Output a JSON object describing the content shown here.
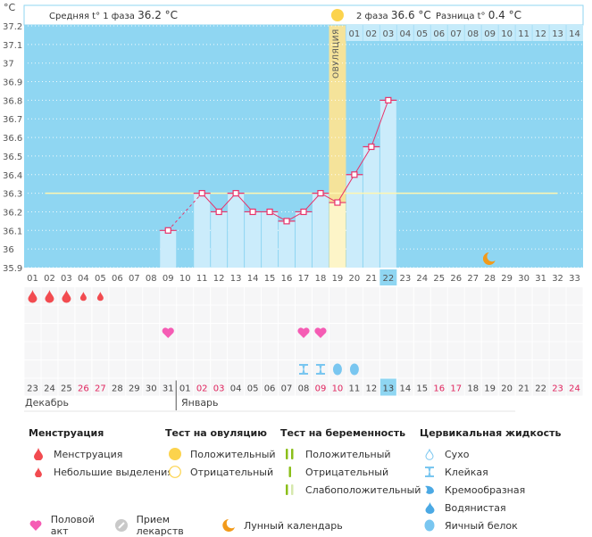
{
  "header": {
    "unit": "°C",
    "phase1_label": "Средняя t° 1 фаза",
    "phase1_value": "36.2 °C",
    "phase2_label": "2 фаза",
    "phase2_value": "36.6 °C",
    "diff_label": "Разница t°",
    "diff_value": "0.4 °C",
    "ovulation_label": "ОВУЛЯЦИЯ",
    "luteal_days": [
      "01",
      "02",
      "03",
      "04",
      "05",
      "06",
      "07",
      "08",
      "09",
      "10",
      "11",
      "12",
      "13",
      "14"
    ]
  },
  "chart_data": {
    "type": "line",
    "title": "",
    "xlabel": "",
    "ylabel": "°C",
    "ylim": [
      35.9,
      37.2
    ],
    "yticks": [
      "37.2",
      "37.1",
      "37",
      "36.9",
      "36.8",
      "36.7",
      "36.6",
      "36.5",
      "36.4",
      "36.3",
      "36.2",
      "36.1",
      "36",
      "35.9"
    ],
    "ytick_values": [
      37.2,
      37.1,
      37.0,
      36.9,
      36.8,
      36.7,
      36.6,
      36.5,
      36.4,
      36.3,
      36.2,
      36.1,
      36.0,
      35.9
    ],
    "cycle_days": [
      "01",
      "02",
      "03",
      "04",
      "05",
      "06",
      "07",
      "08",
      "09",
      "10",
      "11",
      "12",
      "13",
      "14",
      "15",
      "16",
      "17",
      "18",
      "19",
      "20",
      "21",
      "22",
      "23",
      "24",
      "25",
      "26",
      "27",
      "28",
      "29",
      "30",
      "31",
      "32",
      "33"
    ],
    "current_day": 22,
    "ovulation_day": 19,
    "coverline": 36.3,
    "coverline_range": [
      2,
      32
    ],
    "series": [
      {
        "name": "Базальная температура",
        "points": [
          {
            "day": 9,
            "value": 36.1
          },
          {
            "day": 11,
            "value": 36.3
          },
          {
            "day": 12,
            "value": 36.2
          },
          {
            "day": 13,
            "value": 36.3
          },
          {
            "day": 14,
            "value": 36.2
          },
          {
            "day": 15,
            "value": 36.2
          },
          {
            "day": 16,
            "value": 36.15
          },
          {
            "day": 17,
            "value": 36.2
          },
          {
            "day": 18,
            "value": 36.3
          },
          {
            "day": 19,
            "value": 36.25
          },
          {
            "day": 20,
            "value": 36.4
          },
          {
            "day": 21,
            "value": 36.55
          },
          {
            "day": 22,
            "value": 36.8
          }
        ],
        "dashed_segments": [
          [
            9,
            11
          ]
        ]
      }
    ],
    "moon_day": 28,
    "ovulation_test_positive_day": 19
  },
  "markers": {
    "menstruation": [
      {
        "day": 1,
        "type": "heavy"
      },
      {
        "day": 2,
        "type": "heavy"
      },
      {
        "day": 3,
        "type": "heavy"
      },
      {
        "day": 4,
        "type": "light"
      },
      {
        "day": 5,
        "type": "light"
      }
    ],
    "intercourse_days": [
      9,
      17,
      18
    ],
    "cervical_fluid": [
      {
        "day": 17,
        "type": "sticky"
      },
      {
        "day": 18,
        "type": "sticky"
      },
      {
        "day": 19,
        "type": "egg-white"
      },
      {
        "day": 20,
        "type": "egg-white"
      }
    ]
  },
  "calendar": {
    "dates": [
      {
        "d": "23",
        "red": false
      },
      {
        "d": "24",
        "red": false
      },
      {
        "d": "25",
        "red": false
      },
      {
        "d": "26",
        "red": true
      },
      {
        "d": "27",
        "red": true
      },
      {
        "d": "28",
        "red": false
      },
      {
        "d": "29",
        "red": false
      },
      {
        "d": "30",
        "red": false
      },
      {
        "d": "31",
        "red": false
      },
      {
        "d": "01",
        "red": false
      },
      {
        "d": "02",
        "red": true
      },
      {
        "d": "03",
        "red": true
      },
      {
        "d": "04",
        "red": false
      },
      {
        "d": "05",
        "red": false
      },
      {
        "d": "06",
        "red": false
      },
      {
        "d": "07",
        "red": false
      },
      {
        "d": "08",
        "red": false
      },
      {
        "d": "09",
        "red": true
      },
      {
        "d": "10",
        "red": true
      },
      {
        "d": "11",
        "red": false
      },
      {
        "d": "12",
        "red": false
      },
      {
        "d": "13",
        "red": false
      },
      {
        "d": "14",
        "red": false
      },
      {
        "d": "15",
        "red": false
      },
      {
        "d": "16",
        "red": true
      },
      {
        "d": "17",
        "red": true
      },
      {
        "d": "18",
        "red": false
      },
      {
        "d": "19",
        "red": false
      },
      {
        "d": "20",
        "red": false
      },
      {
        "d": "21",
        "red": false
      },
      {
        "d": "22",
        "red": false
      },
      {
        "d": "23",
        "red": true
      },
      {
        "d": "24",
        "red": true
      }
    ],
    "month1": "Декабрь",
    "month2": "Январь",
    "today_index": 22
  },
  "legend": {
    "menstruation": {
      "title": "Менструация",
      "items": [
        "Менструация",
        "Небольшие выделения"
      ]
    },
    "ovulation_test": {
      "title": "Тест на овуляцию",
      "items": [
        "Положительный",
        "Отрицательный"
      ]
    },
    "pregnancy_test": {
      "title": "Тест на беременность",
      "items": [
        "Положительный",
        "Отрицательный",
        "Слабоположительный"
      ]
    },
    "cervical_fluid": {
      "title": "Цервикальная жидкость",
      "items": [
        "Сухо",
        "Клейкая",
        "Кремообразная",
        "Водянистая",
        "Яичный белок"
      ]
    },
    "misc": [
      "Половой акт",
      "Прием лекарств",
      "Лунный календарь"
    ]
  },
  "colors": {
    "plot_bg": "#8fd6f2",
    "bar": "#cbecfb",
    "ovulation_band": "#f5e39a",
    "line": "#e8336a",
    "coverline": "#fff6b0",
    "menstruation": "#f24b50",
    "heart": "#f55cb4",
    "fluid": "#79c6f0",
    "sun": "#fcd34d",
    "moon": "#f29a1a",
    "pregnancy": "#8bbf1a",
    "red_date": "#e0245e"
  }
}
